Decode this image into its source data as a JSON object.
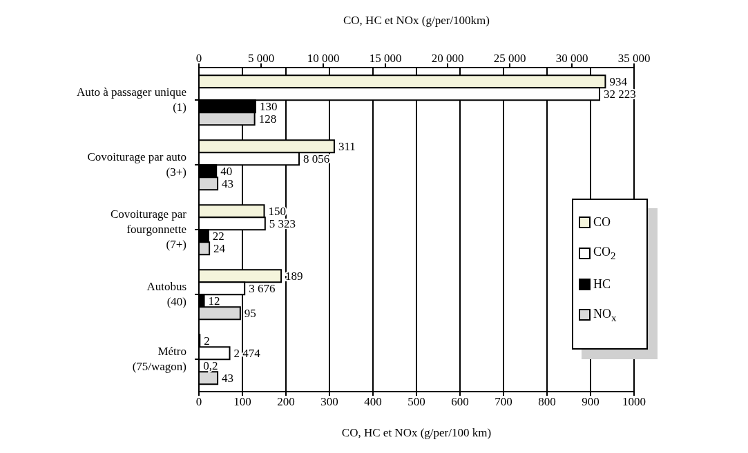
{
  "chart_data": {
    "type": "bar",
    "orientation": "horizontal",
    "categories": [
      "Auto à passager unique\n(1)",
      "Covoiturage par auto\n(3+)",
      "Covoiturage par\nfourgonnette\n(7+)",
      "Autobus\n(40)",
      "Métro\n(75/wagon)"
    ],
    "series": [
      {
        "name": "CO",
        "color": "#f4f4dc",
        "values": [
          934,
          311,
          150,
          189,
          2
        ],
        "value_labels": [
          "934",
          "311",
          "150",
          "189",
          "2"
        ]
      },
      {
        "name": "CO$_{2}$",
        "color": "#ffffff",
        "axis": "x2",
        "values": [
          32223,
          8056,
          5323,
          3676,
          2474
        ],
        "value_labels": [
          "32 223",
          "8 056",
          "5 323",
          "3 676",
          "2 474"
        ]
      },
      {
        "name": "HC",
        "color": "#000000",
        "values": [
          130,
          40,
          22,
          12,
          0.2
        ],
        "value_labels": [
          "130",
          "40",
          "22",
          "12",
          "0,2"
        ]
      },
      {
        "name": "NO$_{x}$",
        "color": "#d8d8d8",
        "values": [
          128,
          43,
          24,
          95,
          43
        ],
        "value_labels": [
          "128",
          "43",
          "24",
          "95",
          "43"
        ]
      }
    ],
    "xlabel": "CO, HC et NOx (g/per/100 km)",
    "x2label": "CO, HC et NOx (g/per/100km)",
    "xlim": [
      0,
      1000
    ],
    "xticks": [
      0,
      100,
      200,
      300,
      400,
      500,
      600,
      700,
      800,
      900,
      1000
    ],
    "x2lim": [
      0,
      35000
    ],
    "x2ticks": [
      0,
      {
        "value": 5000,
        "label": "5 000"
      },
      {
        "value": 10000,
        "label": "10 000"
      },
      {
        "value": 15000,
        "label": "15 000"
      },
      {
        "value": 20000,
        "label": "20 000"
      },
      {
        "value": 25000,
        "label": "25 000"
      },
      {
        "value": 30000,
        "label": "30 000"
      },
      {
        "value": 35000,
        "label": "35 000"
      }
    ],
    "grid": "x",
    "legend": "right"
  }
}
